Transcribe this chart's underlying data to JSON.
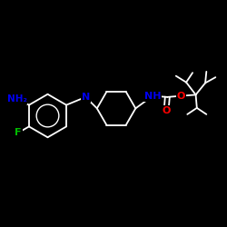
{
  "background_color": "#000000",
  "bond_color": "#ffffff",
  "atom_colors": {
    "N": "#0000ee",
    "O": "#ff0000",
    "F": "#00bb00",
    "C": "#ffffff",
    "H": "#ffffff"
  },
  "figsize": [
    2.5,
    2.5
  ],
  "dpi": 100,
  "xlim": [
    0,
    10
  ],
  "ylim": [
    0,
    10
  ]
}
